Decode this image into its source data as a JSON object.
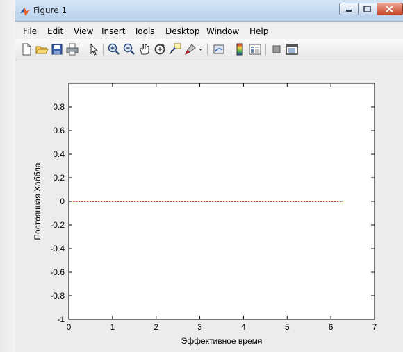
{
  "window": {
    "title": "Figure 1"
  },
  "menu": {
    "items": [
      "File",
      "Edit",
      "View",
      "Insert",
      "Tools",
      "Desktop",
      "Window",
      "Help"
    ]
  },
  "toolbar": {
    "icons": [
      "new-figure-icon",
      "open-file-icon",
      "save-icon",
      "print-icon",
      "edit-plot-icon",
      "zoom-in-icon",
      "zoom-out-icon",
      "pan-icon",
      "rotate-3d-icon",
      "data-cursor-icon",
      "brush-icon",
      "link-plot-icon",
      "colorbar-icon",
      "legend-icon",
      "hide-plot-tools-icon",
      "show-plot-tools-icon"
    ]
  },
  "colors": {
    "line_blue": "#1f3fbf",
    "line_red": "#c02020",
    "axes_bg": "#ffffff",
    "figure_bg": "#ececec"
  },
  "chart_data": {
    "type": "line",
    "xlabel": "Эффективное время",
    "ylabel": "Постоянная Хаббла",
    "xlim": [
      0,
      7
    ],
    "ylim": [
      -1,
      1
    ],
    "x_ticks": [
      "0",
      "1",
      "2",
      "3",
      "4",
      "5",
      "6",
      "7"
    ],
    "y_ticks": [
      "-1",
      "-0.8",
      "-0.6",
      "-0.4",
      "-0.2",
      "0",
      "0.2",
      "0.4",
      "0.6",
      "0.8"
    ],
    "series": [
      {
        "color": "#1f3fbf",
        "x": [
          0.1,
          6.28
        ],
        "y": [
          0,
          0
        ]
      },
      {
        "color": "#c02020",
        "x": [
          0.1,
          6.28
        ],
        "y": [
          0,
          0
        ]
      }
    ],
    "grid": false
  }
}
